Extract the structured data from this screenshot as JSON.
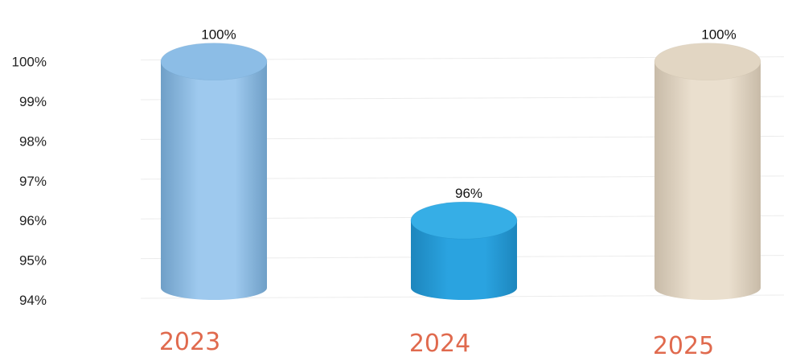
{
  "chart_data": {
    "type": "bar",
    "categories": [
      "2023",
      "2024",
      "2025"
    ],
    "values": [
      100,
      96,
      100
    ],
    "value_labels": [
      "100%",
      "96%",
      "100%"
    ],
    "y_ticks": [
      "94%",
      "95%",
      "96%",
      "97%",
      "98%",
      "99%",
      "100%"
    ],
    "ylim": [
      94,
      100.6
    ],
    "grid": true,
    "legend": "none",
    "colors": {
      "bars": [
        "#9ec9ee",
        "#2aa3e0",
        "#eadfce"
      ],
      "bar_shadows": [
        "#6f9fc7",
        "#1d86bd",
        "#c8bba8"
      ],
      "bar_tops": [
        "#8cbde6",
        "#36aee6",
        "#e2d6c3"
      ],
      "category_label": "#e06a4e",
      "grid": "#ececec"
    }
  }
}
